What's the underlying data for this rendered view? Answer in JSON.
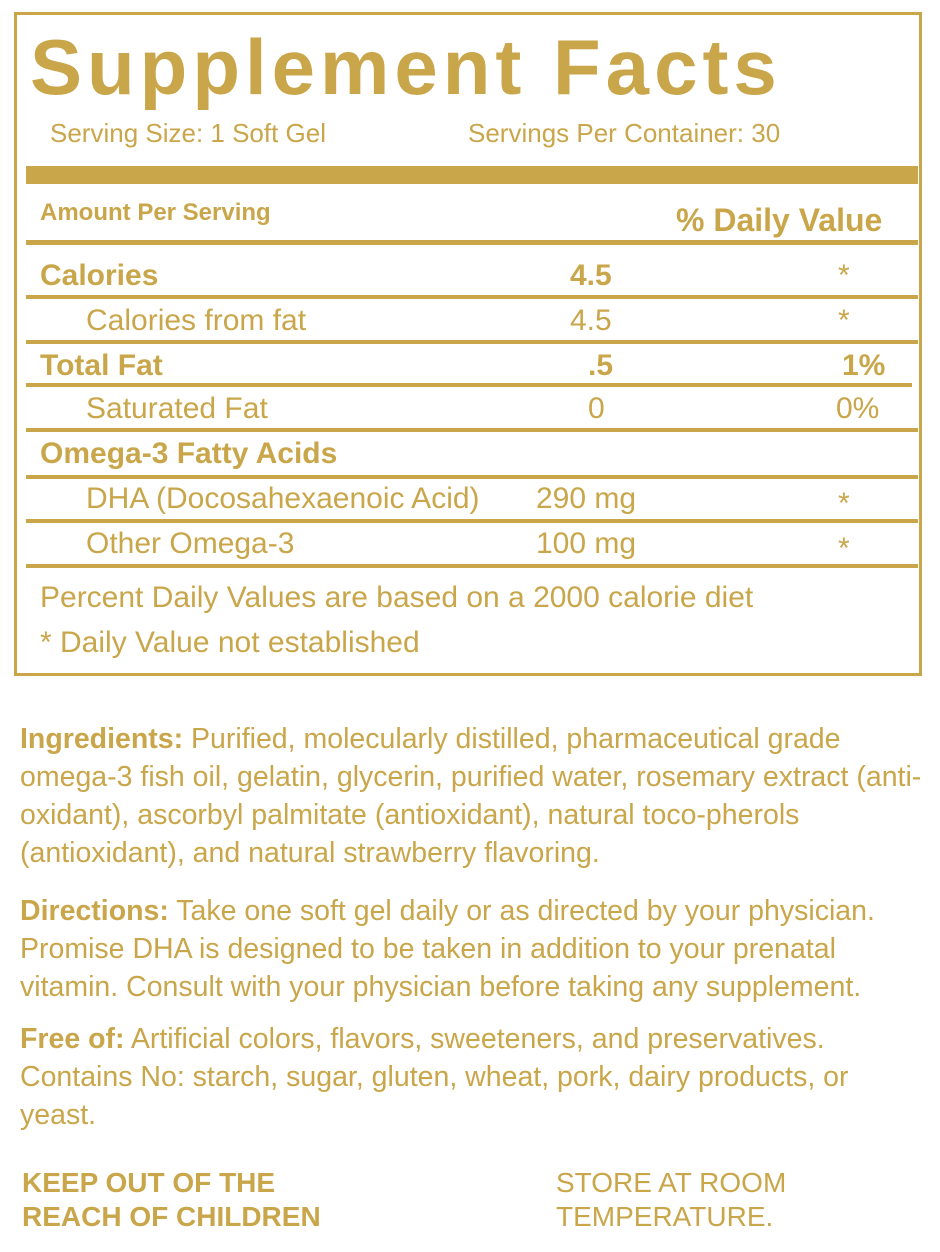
{
  "panel": {
    "title": "Supplement Facts",
    "serving_size": "Serving Size: 1 Soft Gel",
    "servings_per_container": "Servings Per Container: 30",
    "amount_header": "Amount Per Serving",
    "dv_header": "% Daily Value",
    "rows": [
      {
        "name": "Calories",
        "amount": "4.5",
        "dv": "*"
      },
      {
        "name": "Calories from fat",
        "amount": "4.5",
        "dv": "*"
      },
      {
        "name": "Total Fat",
        "amount": ".5",
        "dv": "1%"
      },
      {
        "name": "Saturated Fat",
        "amount": "0",
        "dv": "0%"
      },
      {
        "name": "Omega-3 Fatty Acids"
      },
      {
        "name": "DHA (Docosahexaenoic Acid)",
        "amount": "290 mg",
        "dv": "*"
      },
      {
        "name": "Other Omega-3",
        "amount": "100 mg",
        "dv": "*"
      }
    ],
    "footnote_1": "Percent Daily Values are based on a 2000 calorie diet",
    "footnote_2": "* Daily Value not established"
  },
  "ingredients": {
    "label": "Ingredients:",
    "text": " Purified, molecularly distilled, pharmaceutical grade omega-3 fish oil, gelatin, glycerin, purified water, rosemary extract (anti-oxidant), ascorbyl palmitate (antioxidant), natural toco-pherols (antioxidant),  and natural strawberry flavoring."
  },
  "directions": {
    "label": "Directions:",
    "text": " Take one soft gel daily or as directed by your physician. Promise DHA is designed to be taken in addition to your prenatal vitamin. Consult with your physician before taking any supplement."
  },
  "free_of": {
    "label": "Free of:",
    "text": " Artificial colors, flavors, sweeteners, and preservatives. Contains No: starch, sugar, gluten, wheat, pork, dairy products, or yeast."
  },
  "warnings": {
    "children_line1": "KEEP OUT OF THE",
    "children_line2": "REACH OF CHILDREN",
    "storage_line1": "STORE AT ROOM",
    "storage_line2": "TEMPERATURE."
  },
  "colors": {
    "gold": "#c9a64a",
    "background": "#ffffff"
  }
}
